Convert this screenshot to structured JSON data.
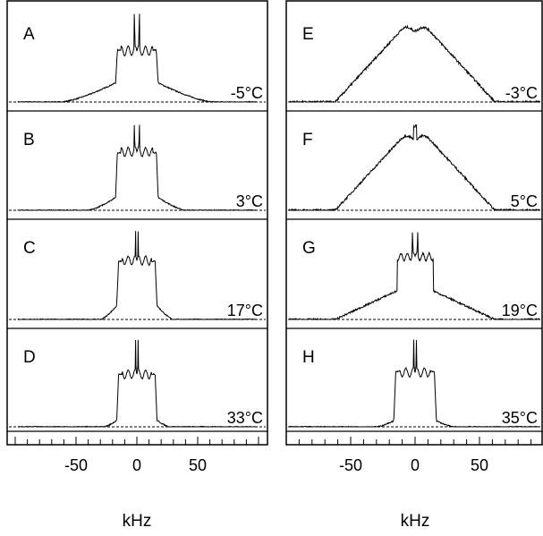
{
  "chart_data": [
    {
      "type": "line",
      "column": "left",
      "xlabel": "kHz",
      "xlim": [
        -100,
        100
      ],
      "xticks": [
        -50,
        0,
        50
      ],
      "grid": false,
      "panels": [
        {
          "label": "A",
          "temperature": "-5°C",
          "shape": {
            "plateau_half_width": 16,
            "plateau_height": 0.56,
            "edge_height": 0.52,
            "wing_extent": 62,
            "wing_height": 0.22,
            "center_peaks": [
              -2,
              2
            ],
            "center_height": 1.0
          }
        },
        {
          "label": "B",
          "temperature": "3°C",
          "shape": {
            "plateau_half_width": 16,
            "plateau_height": 0.66,
            "edge_height": 0.6,
            "wing_extent": 40,
            "wing_height": 0.16,
            "center_peaks": [
              -2,
              2
            ],
            "center_height": 1.0
          }
        },
        {
          "label": "C",
          "temperature": "17°C",
          "shape": {
            "plateau_half_width": 15,
            "plateau_height": 0.66,
            "edge_height": 0.6,
            "wing_extent": 30,
            "wing_height": 0.18,
            "center_peaks": [
              -1,
              1
            ],
            "center_height": 1.0
          }
        },
        {
          "label": "D",
          "temperature": "33°C",
          "shape": {
            "plateau_half_width": 15,
            "plateau_height": 0.6,
            "edge_height": 0.55,
            "wing_extent": 27,
            "wing_height": 0.09,
            "center_peaks": [
              -1,
              1
            ],
            "center_height": 1.0
          }
        }
      ]
    },
    {
      "type": "line",
      "column": "right",
      "xlabel": "kHz",
      "xlim": [
        -100,
        100
      ],
      "xticks": [
        -50,
        0,
        50
      ],
      "grid": false,
      "panels": [
        {
          "label": "E",
          "temperature": "-3°C",
          "shape": {
            "type": "triangle",
            "base_half_width": 62,
            "top_half_width": 10,
            "top_height": 0.8,
            "noise": 0.025
          }
        },
        {
          "label": "F",
          "temperature": "5°C",
          "shape": {
            "type": "triangle",
            "base_half_width": 62,
            "top_half_width": 10,
            "top_height": 0.82,
            "noise": 0.025,
            "center_spike": 0.95
          }
        },
        {
          "label": "G",
          "temperature": "19°C",
          "shape": {
            "type": "mixed",
            "base_half_width": 62,
            "plateau_half_width": 14,
            "plateau_height": 0.7,
            "center_peaks": [
              -2,
              2
            ],
            "center_height": 1.0
          }
        },
        {
          "label": "H",
          "temperature": "35°C",
          "shape": {
            "plateau_half_width": 15,
            "plateau_height": 0.62,
            "edge_height": 0.58,
            "wing_extent": 30,
            "wing_height": 0.08,
            "center_peaks": [
              -1,
              1
            ],
            "center_height": 1.0
          }
        }
      ]
    }
  ]
}
